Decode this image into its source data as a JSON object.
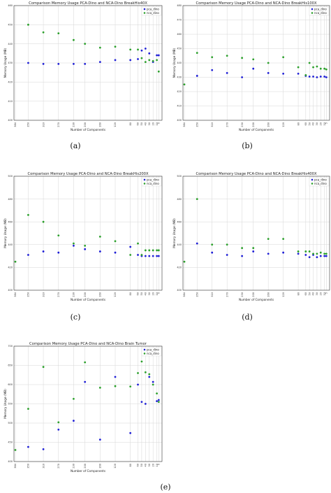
{
  "colors": {
    "pca": "#1f1fd6",
    "nca": "#2ca02c"
  },
  "chart_data": [
    {
      "type": "scatter",
      "title": "Comparison Memory Usage PCA-Dino and NCA-Dino BreakHis40X",
      "xlabel": "Number of Components",
      "ylabel": "Memory Usage (MB)",
      "xticks": [
        "384",
        "350",
        "310",
        "270",
        "230",
        "200",
        "160",
        "120",
        "80",
        "60",
        "50",
        "40",
        "30",
        "20",
        "10",
        "5"
      ],
      "yticks": [
        400,
        410,
        420,
        430,
        440,
        450,
        460
      ],
      "ylim": [
        400,
        460
      ],
      "legend": "top-right",
      "series": [
        {
          "name": "pca_dino",
          "color": "#1f1fd6",
          "x": [
            350,
            310,
            270,
            230,
            200,
            160,
            120,
            80,
            60,
            50,
            40,
            30,
            20,
            10,
            5
          ],
          "y": [
            430,
            429.5,
            429.5,
            429.5,
            429.5,
            430.5,
            431.5,
            431.5,
            432,
            436.5,
            437.5,
            435,
            430.5,
            434,
            434
          ]
        },
        {
          "name": "nca_dino",
          "color": "#2ca02c",
          "x": [
            350,
            310,
            270,
            230,
            200,
            160,
            120,
            80,
            60,
            50,
            40,
            30,
            20,
            10,
            5
          ],
          "y": [
            450,
            446,
            445.5,
            442,
            440,
            438,
            438.5,
            437,
            437,
            432.5,
            430.5,
            431.5,
            431,
            431.5,
            425.5
          ]
        }
      ],
      "caption": "(a)"
    },
    {
      "type": "scatter",
      "title": "Comparison Memory Usage PCA-Dino and NCA-Dino BreakHis100X",
      "xlabel": "Number of Components",
      "ylabel": "Memory Usage (MB)",
      "xticks": [
        "384",
        "350",
        "310",
        "270",
        "230",
        "200",
        "160",
        "120",
        "80",
        "60",
        "50",
        "40",
        "30",
        "20",
        "10",
        "5"
      ],
      "yticks": [
        400,
        410,
        420,
        430,
        440,
        450,
        460,
        470,
        480
      ],
      "ylim": [
        400,
        480
      ],
      "legend": "top-right",
      "series": [
        {
          "name": "pca_dino",
          "color": "#1f1fd6",
          "x": [
            350,
            310,
            270,
            230,
            200,
            160,
            120,
            80,
            60,
            50,
            40,
            30,
            20,
            10,
            5
          ],
          "y": [
            431,
            435,
            433,
            430,
            436,
            433,
            432.5,
            432.5,
            431,
            430.5,
            430.5,
            430,
            430.5,
            430.5,
            430
          ]
        },
        {
          "name": "nca_dino",
          "color": "#2ca02c",
          "x": [
            384,
            350,
            310,
            270,
            230,
            200,
            160,
            120,
            80,
            60,
            50,
            40,
            30,
            20,
            10,
            5
          ],
          "y": [
            425,
            447,
            444,
            445,
            443.5,
            442.5,
            440,
            444,
            437,
            431.5,
            440,
            437,
            437.5,
            436,
            436,
            435.5
          ]
        }
      ],
      "caption": "(b)"
    },
    {
      "type": "scatter",
      "title": "Comparison Memory Usage PCA-Dino and NCA-Dino BreakHis200X",
      "xlabel": "Number of Components",
      "ylabel": "Memory Usage (MB)",
      "xticks": [
        "384",
        "350",
        "310",
        "270",
        "230",
        "200",
        "160",
        "120",
        "80",
        "60",
        "50",
        "40",
        "30",
        "20",
        "10",
        "5"
      ],
      "yticks": [
        400,
        420,
        440,
        460,
        480,
        500
      ],
      "ylim": [
        400,
        500
      ],
      "legend": "top-right",
      "series": [
        {
          "name": "pca_dino",
          "color": "#1f1fd6",
          "x": [
            350,
            310,
            270,
            230,
            200,
            160,
            120,
            80,
            60,
            50,
            40,
            30,
            20,
            10,
            5
          ],
          "y": [
            431,
            434,
            433,
            439,
            436,
            434,
            433,
            438,
            431,
            430,
            430,
            430,
            430,
            430,
            430
          ]
        },
        {
          "name": "nca_dino",
          "color": "#2ca02c",
          "x": [
            384,
            350,
            310,
            270,
            230,
            200,
            160,
            120,
            80,
            60,
            50,
            40,
            30,
            20,
            10,
            5
          ],
          "y": [
            425,
            466,
            460,
            448,
            441,
            439,
            447,
            443,
            431,
            441,
            431,
            435,
            435,
            435,
            435,
            435
          ]
        }
      ],
      "caption": "(c)"
    },
    {
      "type": "scatter",
      "title": "Comparison Memory Usage PCA-Dino and NCA-Dino BreakHis400X",
      "xlabel": "Number of Components",
      "ylabel": "Memory Usage (MB)",
      "xticks": [
        "384",
        "350",
        "310",
        "270",
        "230",
        "200",
        "160",
        "120",
        "80",
        "60",
        "50",
        "40",
        "30",
        "20",
        "10",
        "5"
      ],
      "yticks": [
        400,
        420,
        440,
        460,
        480,
        500
      ],
      "ylim": [
        400,
        500
      ],
      "legend": "top-right",
      "series": [
        {
          "name": "pca_dino",
          "color": "#1f1fd6",
          "x": [
            350,
            310,
            270,
            230,
            200,
            160,
            120,
            80,
            60,
            50,
            40,
            30,
            20,
            10,
            5
          ],
          "y": [
            441,
            433,
            431,
            430,
            434,
            432,
            433,
            432,
            431,
            429,
            431,
            429,
            430,
            430,
            430
          ]
        },
        {
          "name": "nca_dino",
          "color": "#2ca02c",
          "x": [
            384,
            350,
            310,
            270,
            230,
            200,
            160,
            120,
            80,
            60,
            50,
            40,
            30,
            20,
            10,
            5
          ],
          "y": [
            425,
            480,
            440,
            440,
            437,
            437,
            445,
            445,
            434,
            434,
            434,
            432,
            432,
            433,
            432,
            432
          ]
        }
      ],
      "caption": "(d)"
    },
    {
      "type": "scatter",
      "title": "Comparison Memory Usage PCA-Dino and NCA-Dino Brain Tumor",
      "xlabel": "Number of Components",
      "ylabel": "Memory Usage (MB)",
      "xticks": [
        "384",
        "350",
        "310",
        "270",
        "230",
        "200",
        "160",
        "120",
        "80",
        "60",
        "50",
        "40",
        "30",
        "20",
        "10",
        "5"
      ],
      "yticks": [
        400,
        450,
        500,
        550,
        600,
        650,
        700
      ],
      "ylim": [
        400,
        700
      ],
      "legend": "top-right",
      "series": [
        {
          "name": "pca_dino",
          "color": "#1f1fd6",
          "x": [
            350,
            310,
            270,
            230,
            200,
            160,
            120,
            80,
            60,
            50,
            40,
            30,
            20,
            10,
            5
          ],
          "y": [
            438,
            432,
            483,
            506,
            607,
            457,
            620,
            474,
            600,
            555,
            550,
            620,
            607,
            557,
            560
          ]
        },
        {
          "name": "nca_dino",
          "color": "#2ca02c",
          "x": [
            384,
            350,
            310,
            270,
            230,
            200,
            160,
            120,
            80,
            60,
            50,
            40,
            30,
            20,
            10,
            5
          ],
          "y": [
            430,
            537,
            646,
            502,
            563,
            658,
            592,
            596,
            595,
            630,
            660,
            632,
            627,
            600,
            577,
            555
          ]
        }
      ],
      "caption": "(e)"
    }
  ]
}
